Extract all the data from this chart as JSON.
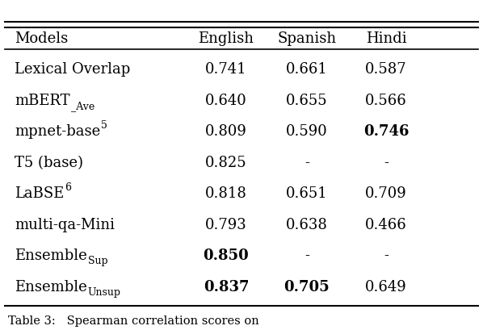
{
  "headers": [
    "Models",
    "English",
    "Spanish",
    "Hindi"
  ],
  "rows": [
    {
      "main": "Lexical Overlap",
      "sup": null,
      "sub": null,
      "sub_color": "black",
      "main_color": "black",
      "english": "0.741",
      "english_bold": false,
      "spanish": "0.661",
      "spanish_bold": false,
      "hindi": "0.587",
      "hindi_bold": false
    },
    {
      "main": "mBERT",
      "sup": null,
      "sub": "−Ave",
      "sub_color": "black",
      "main_color": "black",
      "english": "0.640",
      "english_bold": false,
      "spanish": "0.655",
      "spanish_bold": false,
      "hindi": "0.566",
      "hindi_bold": false
    },
    {
      "main": "mpnet-base",
      "sup": "5",
      "sub": null,
      "sub_color": "black",
      "main_color": "black",
      "english": "0.809",
      "english_bold": false,
      "spanish": "0.590",
      "spanish_bold": false,
      "hindi": "0.746",
      "hindi_bold": true
    },
    {
      "main": "T5 (base)",
      "sup": null,
      "sub": null,
      "sub_color": "black",
      "main_color": "black",
      "english": "0.825",
      "english_bold": false,
      "spanish": "-",
      "spanish_bold": false,
      "hindi": "-",
      "hindi_bold": false
    },
    {
      "main": "LaBSE",
      "sup": "6",
      "sub": null,
      "sub_color": "black",
      "main_color": "black",
      "english": "0.818",
      "english_bold": false,
      "spanish": "0.651",
      "spanish_bold": false,
      "hindi": "0.709",
      "hindi_bold": false
    },
    {
      "main": "multi-qa-Mini",
      "sup": null,
      "sub": null,
      "sub_color": "black",
      "main_color": "black",
      "english": "0.793",
      "english_bold": false,
      "spanish": "0.638",
      "spanish_bold": false,
      "hindi": "0.466",
      "hindi_bold": false
    },
    {
      "main": "Ensemble",
      "sup": null,
      "sub": "Sup",
      "sub_color": "black",
      "main_color": "black",
      "english": "0.850",
      "english_bold": true,
      "spanish": "-",
      "spanish_bold": false,
      "hindi": "-",
      "hindi_bold": false
    },
    {
      "main": "Ensemble",
      "sup": null,
      "sub": "Unsup",
      "sub_color": "black",
      "main_color": "black",
      "english": "0.837",
      "english_bold": true,
      "spanish": "0.705",
      "spanish_bold": true,
      "hindi": "0.649",
      "hindi_bold": false
    }
  ],
  "bg_color": "#ffffff",
  "fontsize": 13,
  "caption_fontsize": 10.5,
  "caption": "Table 3:   Spearman correlation scores on"
}
